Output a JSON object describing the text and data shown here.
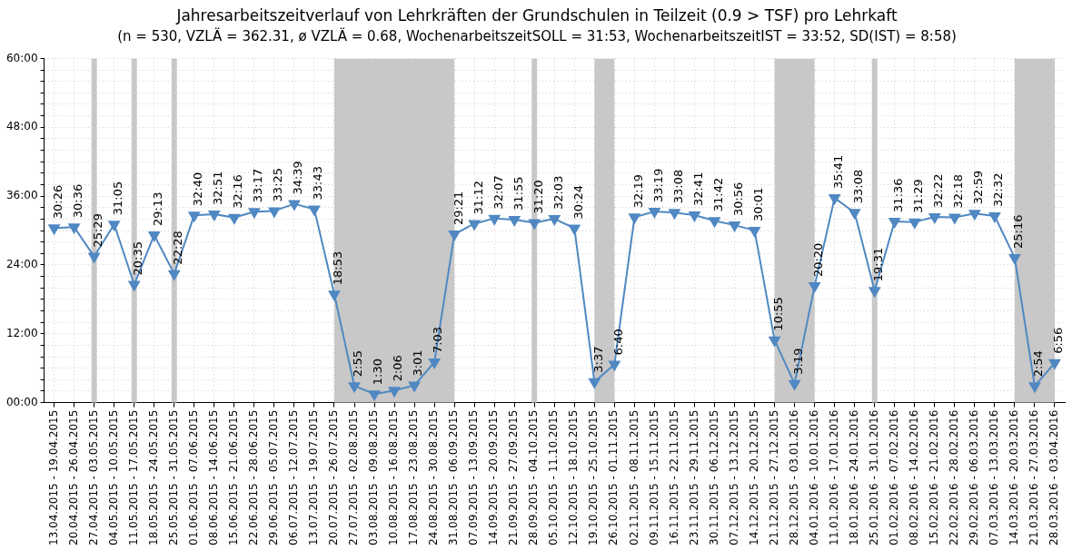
{
  "chart_data": {
    "type": "line",
    "title": "Jahresarbeitszeitverlauf von Lehrkräften der Grundschulen in Teilzeit (0.9 > TSF) pro Lehrkaft",
    "subtitle": "(n = 530, VZLÄ = 362.31, ø VZLÄ = 0.68, WochenarbeitszeitSOLL = 31:53, WochenarbeitszeitIST = 33:52, SD(IST) = 8:58)",
    "categories": [
      "13.04.2015 - 19.04.2015",
      "20.04.2015 - 26.04.2015",
      "27.04.2015 - 03.05.2015",
      "04.05.2015 - 10.05.2015",
      "11.05.2015 - 17.05.2015",
      "18.05.2015 - 24.05.2015",
      "25.05.2015 - 31.05.2015",
      "01.06.2015 - 07.06.2015",
      "08.06.2015 - 14.06.2015",
      "15.06.2015 - 21.06.2015",
      "22.06.2015 - 28.06.2015",
      "29.06.2015 - 05.07.2015",
      "06.07.2015 - 12.07.2015",
      "13.07.2015 - 19.07.2015",
      "20.07.2015 - 26.07.2015",
      "27.07.2015 - 02.08.2015",
      "03.08.2015 - 09.08.2015",
      "10.08.2015 - 16.08.2015",
      "17.08.2015 - 23.08.2015",
      "24.08.2015 - 30.08.2015",
      "31.08.2015 - 06.09.2015",
      "07.09.2015 - 13.09.2015",
      "14.09.2015 - 20.09.2015",
      "21.09.2015 - 27.09.2015",
      "28.09.2015 - 04.10.2015",
      "05.10.2015 - 11.10.2015",
      "12.10.2015 - 18.10.2015",
      "19.10.2015 - 25.10.2015",
      "26.10.2015 - 01.11.2015",
      "02.11.2015 - 08.11.2015",
      "09.11.2015 - 15.11.2015",
      "16.11.2015 - 22.11.2015",
      "23.11.2015 - 29.11.2015",
      "30.11.2015 - 06.12.2015",
      "07.12.2015 - 13.12.2015",
      "14.12.2015 - 20.12.2015",
      "21.12.2015 - 27.12.2015",
      "28.12.2015 - 03.01.2016",
      "04.01.2016 - 10.01.2016",
      "11.01.2016 - 17.01.2016",
      "18.01.2016 - 24.01.2016",
      "25.01.2016 - 31.01.2016",
      "01.02.2016 - 07.02.2016",
      "08.02.2016 - 14.02.2016",
      "15.02.2016 - 21.02.2016",
      "22.02.2016 - 28.02.2016",
      "29.02.2016 - 06.03.2016",
      "07.03.2016 - 13.03.2016",
      "14.03.2016 - 20.03.2016",
      "21.03.2016 - 27.03.2016",
      "28.03.2016 - 03.04.2016"
    ],
    "series": [
      {
        "color": "#4f88c2",
        "values": [
          30.433,
          30.6,
          25.483,
          31.083,
          20.583,
          29.217,
          22.467,
          32.667,
          32.85,
          32.267,
          33.283,
          33.417,
          34.65,
          33.717,
          18.883,
          2.917,
          1.5,
          2.1,
          3.017,
          7.05,
          29.35,
          31.2,
          32.117,
          31.917,
          31.333,
          32.05,
          30.4,
          3.617,
          6.667,
          32.317,
          33.317,
          33.133,
          32.683,
          31.7,
          30.933,
          30.017,
          10.917,
          3.317,
          20.333,
          35.683,
          33.133,
          19.517,
          31.6,
          31.483,
          32.367,
          32.3,
          32.983,
          32.533,
          25.267,
          2.9,
          6.933
        ],
        "value_labels": [
          "30:26",
          "30:36",
          "25:29",
          "31:05",
          "20:35",
          "29:13",
          "22:28",
          "32:40",
          "32:51",
          "32:16",
          "33:17",
          "33:25",
          "34:39",
          "33:43",
          "18:53",
          "2:55",
          "1:30",
          "2:06",
          "3:01",
          "7:03",
          "29:21",
          "31:12",
          "32:07",
          "31:55",
          "31:20",
          "32:03",
          "30:24",
          "3:37",
          "6:40",
          "32:19",
          "33:19",
          "33:08",
          "32:41",
          "31:42",
          "30:56",
          "30:01",
          "10:55",
          "3:19",
          "20:20",
          "35:41",
          "33:08",
          "19:31",
          "31:36",
          "31:29",
          "32:22",
          "32:18",
          "32:59",
          "32:32",
          "25:16",
          "2:54",
          "6:56"
        ]
      }
    ],
    "ylim": [
      0,
      60
    ],
    "yticks": [
      {
        "value": 0,
        "label": "00:00"
      },
      {
        "value": 2,
        "label": null
      },
      {
        "value": 4,
        "label": null
      },
      {
        "value": 6,
        "label": null
      },
      {
        "value": 8,
        "label": null
      },
      {
        "value": 10,
        "label": null
      },
      {
        "value": 12,
        "label": "12:00"
      },
      {
        "value": 14,
        "label": null
      },
      {
        "value": 16,
        "label": null
      },
      {
        "value": 18,
        "label": null
      },
      {
        "value": 20,
        "label": null
      },
      {
        "value": 22,
        "label": null
      },
      {
        "value": 24,
        "label": "24:00"
      },
      {
        "value": 26,
        "label": null
      },
      {
        "value": 28,
        "label": null
      },
      {
        "value": 30,
        "label": null
      },
      {
        "value": 32,
        "label": null
      },
      {
        "value": 34,
        "label": null
      },
      {
        "value": 36,
        "label": "36:00"
      },
      {
        "value": 38,
        "label": null
      },
      {
        "value": 40,
        "label": null
      },
      {
        "value": 42,
        "label": null
      },
      {
        "value": 44,
        "label": null
      },
      {
        "value": 46,
        "label": null
      },
      {
        "value": 48,
        "label": "48:00"
      },
      {
        "value": 50,
        "label": null
      },
      {
        "value": 52,
        "label": null
      },
      {
        "value": 54,
        "label": null
      },
      {
        "value": 56,
        "label": null
      },
      {
        "value": 58,
        "label": null
      },
      {
        "value": 60,
        "label": "60:00"
      }
    ],
    "bands": [
      {
        "axis": "x",
        "from": "27.04.2015 - 03.05.2015",
        "to": "27.04.2015 - 03.05.2015",
        "color": "#c8c8c8"
      },
      {
        "axis": "x",
        "from": "11.05.2015 - 17.05.2015",
        "to": "11.05.2015 - 17.05.2015",
        "color": "#c8c8c8"
      },
      {
        "axis": "x",
        "from": "25.05.2015 - 31.05.2015",
        "to": "25.05.2015 - 31.05.2015",
        "color": "#c8c8c8"
      },
      {
        "axis": "x",
        "from": "20.07.2015 - 26.07.2015",
        "to": "31.08.2015 - 06.09.2015",
        "color": "#c8c8c8"
      },
      {
        "axis": "x",
        "from": "28.09.2015 - 04.10.2015",
        "to": "28.09.2015 - 04.10.2015",
        "color": "#c8c8c8"
      },
      {
        "axis": "x",
        "from": "19.10.2015 - 25.10.2015",
        "to": "26.10.2015 - 01.11.2015",
        "color": "#c8c8c8"
      },
      {
        "axis": "x",
        "from": "21.12.2015 - 27.12.2015",
        "to": "04.01.2016 - 10.01.2016",
        "color": "#c8c8c8"
      },
      {
        "axis": "x",
        "from": "25.01.2016 - 31.01.2016",
        "to": "25.01.2016 - 31.01.2016",
        "color": "#c8c8c8"
      },
      {
        "axis": "x",
        "from": "14.03.2016 - 20.03.2016",
        "to": "28.03.2016 - 03.04.2016",
        "color": "#c8c8c8"
      }
    ],
    "grid": true,
    "legend": false,
    "marker": "triangle",
    "line_style": "solid"
  }
}
